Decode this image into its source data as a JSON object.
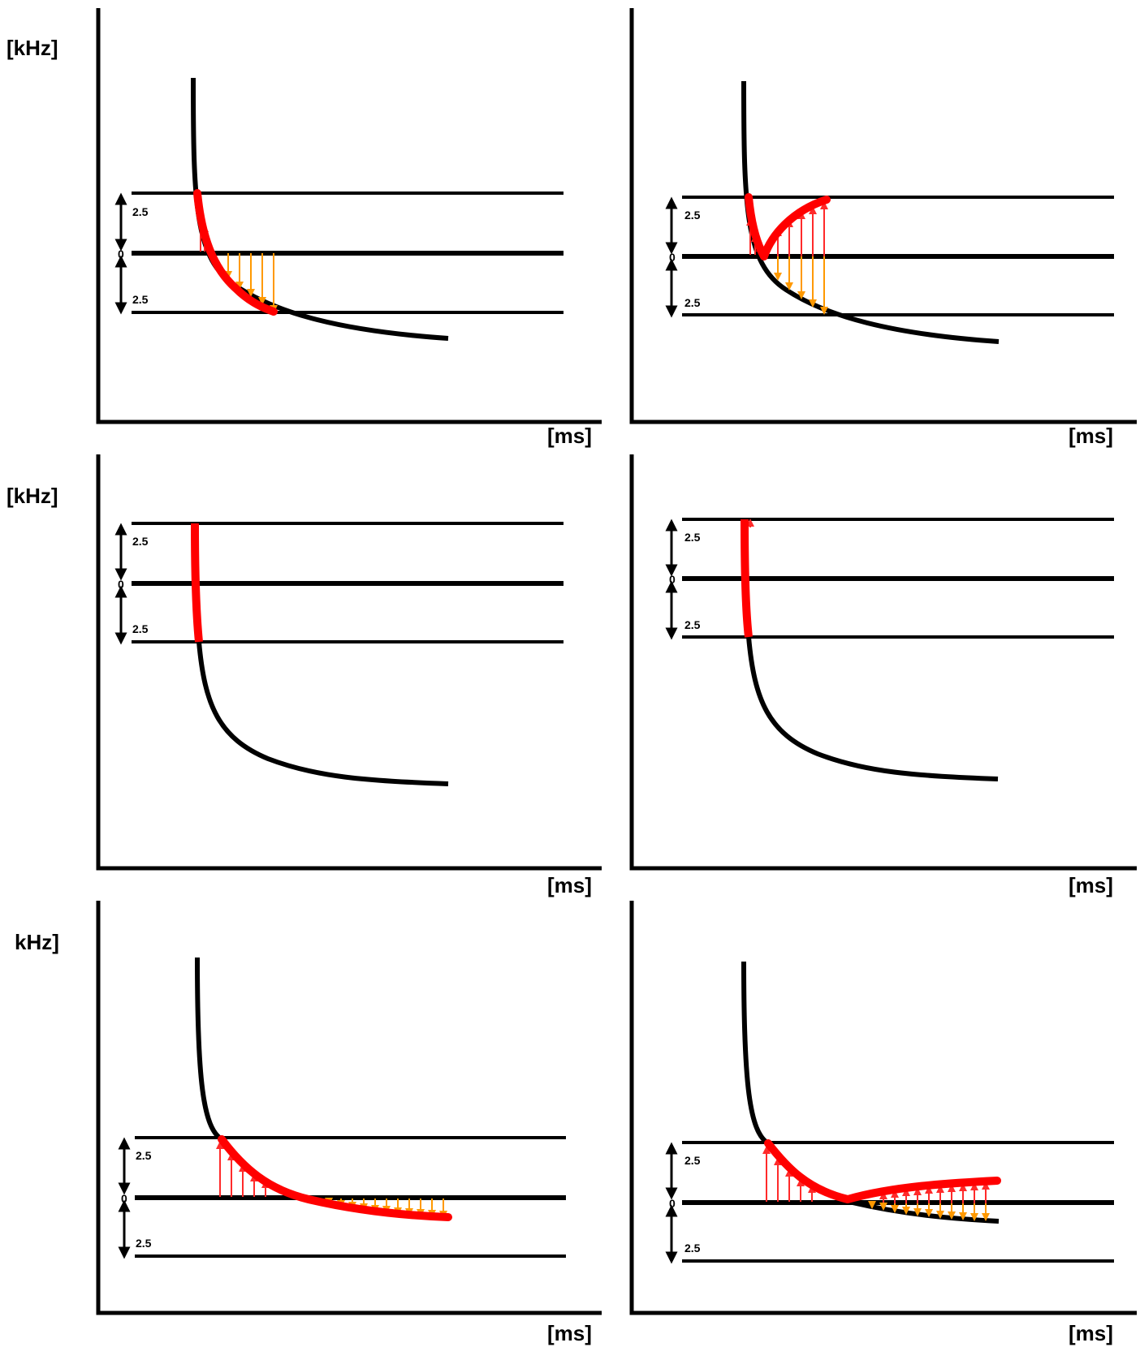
{
  "colors": {
    "curve": "#000000",
    "highlight": "#ff0000",
    "arrow_up": "#ff2a2a",
    "arrow_down": "#ff9900",
    "axis": "#000000"
  },
  "labels": {
    "ylabel_row1": "[kHz]",
    "ylabel_row2": "[kHz]",
    "ylabel_row3": "kHz]",
    "xlabel": "[ms]",
    "zero": "0",
    "band_upper": "2.5",
    "band_lower": "2.5"
  },
  "panels": [
    {
      "id": "row1-left",
      "mode": "chirp-in-band",
      "arrows": "up-then-down"
    },
    {
      "id": "row1-right",
      "mode": "chirp-reflected",
      "arrows": "up-then-down-long"
    },
    {
      "id": "row2-left",
      "mode": "steep-entry",
      "arrows": "none"
    },
    {
      "id": "row2-right",
      "mode": "steep-entry-arrow",
      "arrows": "none"
    },
    {
      "id": "row3-left",
      "mode": "tail-in-band",
      "arrows": "up-then-down"
    },
    {
      "id": "row3-right",
      "mode": "tail-reflected",
      "arrows": "up-then-down-long"
    }
  ]
}
